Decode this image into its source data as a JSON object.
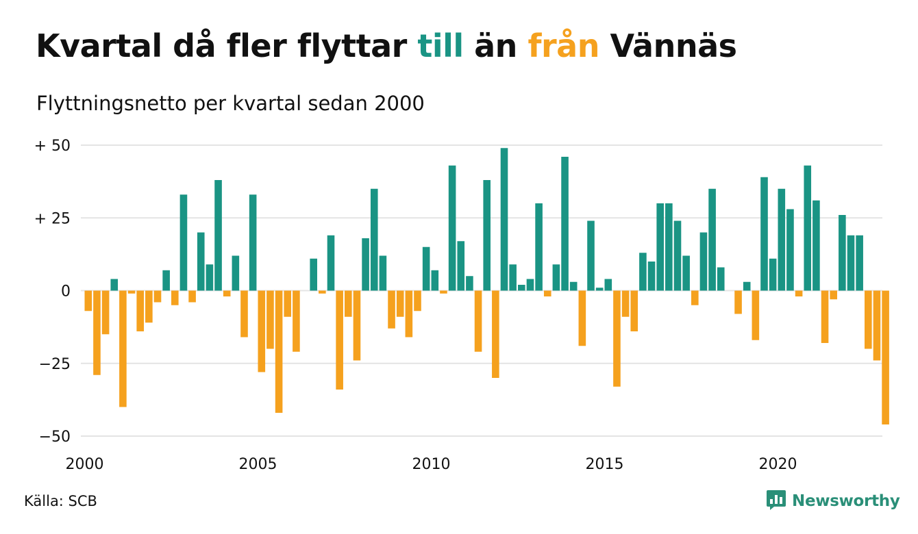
{
  "header": {
    "title_part1": "Kvartal då fler flyttar ",
    "title_till": "till",
    "title_part2": " än ",
    "title_fran": "från",
    "title_part3": " Vännäs",
    "subtitle": "Flyttningsnetto per kvartal sedan 2000"
  },
  "footer": {
    "source": "Källa: SCB",
    "brand": "Newsworthy",
    "brand_icon": "bar-chart-speech-bubble-icon"
  },
  "colors": {
    "positive": "#1a9484",
    "negative": "#f5a11e",
    "grid": "#e4e4e4",
    "brand": "#2a8f78"
  },
  "chart_data": {
    "type": "bar",
    "title": "Kvartal då fler flyttar till än från Vännäs",
    "subtitle": "Flyttningsnetto per kvartal sedan 2000",
    "ylim": [
      -50,
      50
    ],
    "y_ticks": [
      {
        "value": 50,
        "label": "+ 50"
      },
      {
        "value": 25,
        "label": "+ 25"
      },
      {
        "value": 0,
        "label": "0"
      },
      {
        "value": -25,
        "label": "−25"
      },
      {
        "value": -50,
        "label": "−50"
      }
    ],
    "x_ticks": [
      "2000",
      "2005",
      "2010",
      "2015",
      "2020"
    ],
    "grid": true,
    "categories": [
      "2000Q1",
      "2000Q2",
      "2000Q3",
      "2000Q4",
      "2001Q1",
      "2001Q2",
      "2001Q3",
      "2001Q4",
      "2002Q1",
      "2002Q2",
      "2002Q3",
      "2002Q4",
      "2003Q1",
      "2003Q2",
      "2003Q3",
      "2003Q4",
      "2004Q1",
      "2004Q2",
      "2004Q3",
      "2004Q4",
      "2005Q1",
      "2005Q2",
      "2005Q3",
      "2005Q4",
      "2006Q1",
      "2006Q2",
      "2006Q3",
      "2006Q4",
      "2007Q1",
      "2007Q2",
      "2007Q3",
      "2007Q4",
      "2008Q1",
      "2008Q2",
      "2008Q3",
      "2008Q4",
      "2009Q1",
      "2009Q2",
      "2009Q3",
      "2009Q4",
      "2010Q1",
      "2010Q2",
      "2010Q3",
      "2010Q4",
      "2011Q1",
      "2011Q2",
      "2011Q3",
      "2011Q4",
      "2012Q1",
      "2012Q2",
      "2012Q3",
      "2012Q4",
      "2013Q1",
      "2013Q2",
      "2013Q3",
      "2013Q4",
      "2014Q1",
      "2014Q2",
      "2014Q3",
      "2014Q4",
      "2015Q1",
      "2015Q2",
      "2015Q3",
      "2015Q4",
      "2016Q1",
      "2016Q2",
      "2016Q3",
      "2016Q4",
      "2017Q1",
      "2017Q2",
      "2017Q3",
      "2017Q4",
      "2018Q1",
      "2018Q2",
      "2018Q3",
      "2018Q4",
      "2019Q1",
      "2019Q2",
      "2019Q3",
      "2019Q4",
      "2020Q1",
      "2020Q2",
      "2020Q3",
      "2020Q4",
      "2021Q1",
      "2021Q2",
      "2021Q3",
      "2021Q4",
      "2022Q1",
      "2022Q2",
      "2022Q3",
      "2022Q4",
      "2023Q1"
    ],
    "values": [
      -7,
      -29,
      -15,
      4,
      -40,
      -1,
      -14,
      -11,
      -4,
      7,
      -5,
      33,
      -4,
      20,
      9,
      38,
      -2,
      12,
      -16,
      33,
      -28,
      -20,
      -42,
      -9,
      -21,
      0,
      11,
      -1,
      19,
      -34,
      -9,
      -24,
      18,
      35,
      12,
      -13,
      -9,
      -16,
      -7,
      15,
      7,
      -1,
      43,
      17,
      5,
      -21,
      38,
      -30,
      49,
      9,
      2,
      4,
      30,
      -2,
      9,
      46,
      3,
      -19,
      24,
      1,
      4,
      -33,
      -9,
      -14,
      13,
      10,
      30,
      30,
      24,
      12,
      -5,
      20,
      35,
      8,
      0,
      -8,
      3,
      -17,
      39,
      11,
      35,
      28,
      -2,
      43,
      31,
      -18,
      -3,
      26,
      19,
      19,
      -20,
      -24,
      -46
    ]
  }
}
